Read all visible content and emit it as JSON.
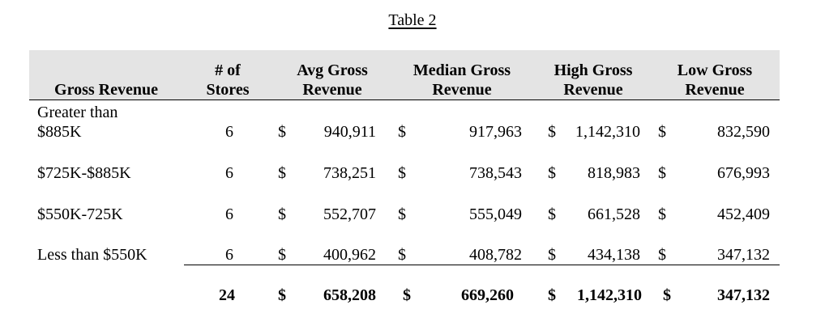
{
  "title": "Table 2",
  "headers": {
    "gross_revenue": "Gross Revenue",
    "stores_line1": "# of",
    "stores_line2": "Stores",
    "avg_line1": "Avg Gross",
    "avg_line2": "Revenue",
    "median_line1": "Median Gross",
    "median_line2": "Revenue",
    "high_line1": "High Gross",
    "high_line2": "Revenue",
    "low_line1": "Low Gross",
    "low_line2": "Revenue"
  },
  "currency": "$",
  "rows": [
    {
      "label_line1": "Greater than",
      "label_line2": "$885K",
      "stores": "6",
      "avg": "940,911",
      "median": "917,963",
      "high": "1,142,310",
      "low": "832,590"
    },
    {
      "label_line1": "",
      "label_line2": "$725K-$885K",
      "stores": "6",
      "avg": "738,251",
      "median": "738,543",
      "high": "818,983",
      "low": "676,993"
    },
    {
      "label_line1": "",
      "label_line2": "$550K-725K",
      "stores": "6",
      "avg": "552,707",
      "median": "555,049",
      "high": "661,528",
      "low": "452,409"
    },
    {
      "label_line1": "",
      "label_line2": "Less than $550K",
      "stores": "6",
      "avg": "400,962",
      "median": "408,782",
      "high": "434,138",
      "low": "347,132"
    }
  ],
  "total": {
    "stores": "24",
    "avg": "658,208",
    "median": "669,260",
    "high": "1,142,310",
    "low": "347,132"
  }
}
